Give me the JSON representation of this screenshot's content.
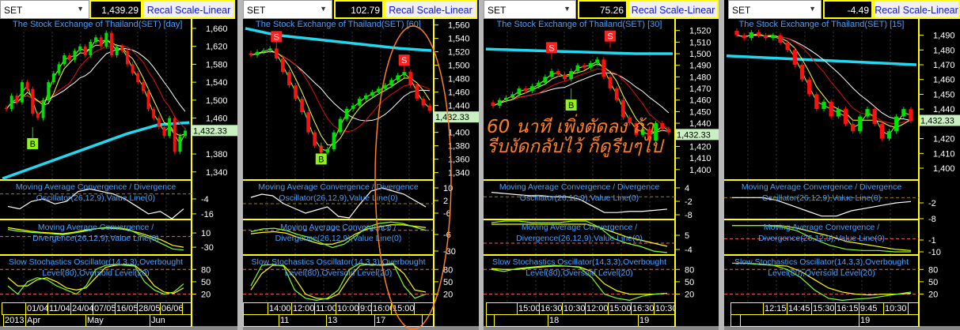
{
  "colors": {
    "up": "#00e000",
    "down": "#ff1010",
    "axis": "#ffff00",
    "title": "#4aa0ff",
    "ma_long": "#22d8f0",
    "last_price_bg": "#c8f0c0",
    "annotation": "#ff7f27"
  },
  "annotation": {
    "text": "60 นาที เพิ่งตัดลง ถ้ารีบงัดกลับไว้ ก็ดูรีบๆไป"
  },
  "indicator_labels": {
    "macd_osc": [
      "Moving Average Convergence / Divergence",
      "Oscillator(26,12,9),Value Line(0)"
    ],
    "macd": [
      "Moving Average Convergence /",
      "Divergence(26,12,9),Value Line(0)"
    ],
    "stoch": [
      "Slow Stochastics Oscillator(14,3,3),Overbought",
      "Level(80),Oversold Level(20)"
    ]
  },
  "panels": [
    {
      "symbol": "SET",
      "value": "1,439.29",
      "button": "Recal Scale-Linear",
      "title": "The Stock Exchange of Thailand(SET) [day]",
      "last_price": "1,432.33",
      "last_price_value": 1432.33,
      "price_ylim": [
        1322,
        1681
      ],
      "price_ticks": [
        1660,
        1620,
        1580,
        1540,
        1500,
        1460,
        1380,
        1340
      ],
      "closes": [
        1480,
        1510,
        1495,
        1540,
        1525,
        1470,
        1460,
        1500,
        1540,
        1560,
        1580,
        1600,
        1590,
        1610,
        1620,
        1600,
        1630,
        1640,
        1620,
        1650,
        1600,
        1620,
        1610,
        1580,
        1560,
        1540,
        1520,
        1480,
        1460,
        1440,
        1420,
        1460,
        1385,
        1420,
        1432
      ],
      "ma_long": [
        1325,
        1350,
        1375,
        1400,
        1425,
        1445,
        1450
      ],
      "signals": [
        {
          "label": "B",
          "index": 5,
          "price": 1440
        }
      ],
      "macd_osc": {
        "ylim": [
          -20.5,
          11.2
        ],
        "ticks": [
          -4,
          -16
        ],
        "zero": 0,
        "line": [
          -10,
          -12,
          -6,
          -4,
          -8,
          -6,
          2,
          4,
          2,
          0,
          -4,
          -10,
          -16,
          -14,
          -20,
          -12
        ]
      },
      "macd": {
        "ylim": [
          -52,
          48
        ],
        "ticks": [
          10,
          -30
        ],
        "zero": 0,
        "signal": [
          25,
          20,
          15,
          12,
          10,
          8,
          12,
          18,
          22,
          24,
          22,
          18,
          10,
          0,
          -10,
          -25,
          -30
        ],
        "macd": [
          20,
          15,
          12,
          10,
          8,
          5,
          10,
          15,
          22,
          26,
          25,
          20,
          5,
          -5,
          -20,
          -35,
          -38
        ]
      },
      "stoch": {
        "ylim": [
          0,
          115
        ],
        "ticks": [
          80,
          50,
          20
        ],
        "levels": [
          80,
          20
        ],
        "k": [
          40,
          20,
          50,
          60,
          55,
          40,
          30,
          20,
          40,
          80,
          90,
          92,
          90,
          88,
          50,
          30,
          20,
          25,
          45
        ],
        "d": [
          60,
          40,
          40,
          55,
          60,
          50,
          35,
          30,
          35,
          60,
          85,
          90,
          92,
          90,
          70,
          40,
          25,
          22,
          35
        ]
      },
      "time_row1": [
        "",
        "01/04",
        "11/04",
        "24/04",
        "07/05",
        "16/05",
        "28/05",
        "06/06",
        ""
      ],
      "time_row2": [
        "2013",
        "Apr",
        "May",
        "Jun"
      ]
    },
    {
      "symbol": "SET",
      "value": "102.79",
      "button": "Recal Scale-Linear",
      "title": "The Stock Exchange of Thailand(SET) [60]",
      "last_price": "1,432.33",
      "last_price_value": 1432.33,
      "price_ylim": [
        1329,
        1569
      ],
      "price_ticks": [
        1560,
        1540,
        1520,
        1500,
        1480,
        1460,
        1440,
        1400,
        1380,
        1360,
        1340
      ],
      "closes": [
        1515,
        1520,
        1522,
        1525,
        1510,
        1490,
        1470,
        1450,
        1430,
        1400,
        1380,
        1370,
        1375,
        1400,
        1420,
        1435,
        1440,
        1450,
        1455,
        1460,
        1465,
        1470,
        1478,
        1485,
        1490,
        1470,
        1450,
        1440,
        1432
      ],
      "ma_long": [
        1555,
        1545,
        1540,
        1535,
        1530,
        1525,
        1522
      ],
      "signals": [
        {
          "label": "S",
          "index": 4,
          "price": 1525
        },
        {
          "label": "B",
          "index": 11,
          "price": 1385
        },
        {
          "label": "S",
          "index": 24,
          "price": 1490
        }
      ],
      "macd_osc": {
        "ylim": [
          -10,
          15
        ],
        "ticks": [
          10,
          2,
          -6
        ],
        "zero": 0,
        "line": [
          4,
          6,
          5,
          0,
          -3,
          -6,
          -4,
          -2,
          -8,
          -9,
          0,
          8,
          10,
          8,
          6,
          2,
          -2
        ]
      },
      "macd": {
        "ylim": [
          -35.7,
          15.7
        ],
        "ticks": [
          -6,
          -30
        ],
        "zero": 0,
        "signal": [
          -5,
          -3,
          -2,
          -4,
          -10,
          -15,
          -20,
          -20,
          -15,
          -5,
          2,
          5,
          8,
          8,
          6,
          4
        ],
        "macd": [
          -2,
          2,
          3,
          0,
          -6,
          -10,
          -18,
          -25,
          -20,
          -8,
          5,
          10,
          12,
          10,
          5,
          0
        ]
      },
      "stoch": {
        "ylim": [
          0,
          115
        ],
        "ticks": [
          80,
          50,
          20
        ],
        "levels": [
          80,
          20
        ],
        "k": [
          40,
          90,
          92,
          88,
          30,
          10,
          5,
          10,
          30,
          80,
          95,
          90,
          92,
          95,
          40,
          10,
          20
        ],
        "d": [
          30,
          70,
          90,
          90,
          60,
          20,
          10,
          8,
          20,
          60,
          90,
          92,
          90,
          92,
          70,
          30,
          25
        ]
      },
      "time_row1": [
        "",
        "14:00",
        "12:00",
        "11:00",
        "10:00",
        "9:00",
        "16:00",
        "15:00",
        ""
      ],
      "time_row2": [
        "",
        "11",
        "13",
        "17",
        ""
      ]
    },
    {
      "symbol": "SET",
      "value": "75.26",
      "button": "Recal Scale-Linear",
      "title": "The Stock Exchange of Thailand(SET) [30]",
      "last_price": "1,432.33",
      "last_price_value": 1432.33,
      "price_ylim": [
        1391,
        1530
      ],
      "price_ticks": [
        1520,
        1510,
        1500,
        1490,
        1480,
        1470,
        1460,
        1450,
        1440,
        1420,
        1410,
        1400
      ],
      "closes": [
        1455,
        1460,
        1462,
        1465,
        1470,
        1468,
        1472,
        1475,
        1480,
        1485,
        1482,
        1478,
        1485,
        1490,
        1488,
        1492,
        1495,
        1480,
        1470,
        1460,
        1445,
        1440,
        1430,
        1435,
        1425,
        1440,
        1435,
        1432
      ],
      "ma_long": [
        1504,
        1503,
        1502,
        1501,
        1500,
        1500
      ],
      "signals": [
        {
          "label": "S",
          "index": 9,
          "price": 1495
        },
        {
          "label": "B",
          "index": 12,
          "price": 1470
        },
        {
          "label": "S",
          "index": 18,
          "price": 1505
        }
      ],
      "macd_osc": {
        "ylim": [
          -10.1,
          7.5
        ],
        "ticks": [
          4,
          -2,
          -8
        ],
        "zero": 0,
        "line": [
          2,
          1.5,
          1,
          0.5,
          0.5,
          0,
          0,
          -1,
          -4,
          -7,
          -7,
          -6.5,
          -6.5,
          -6,
          -5.5
        ]
      },
      "macd": {
        "ylim": [
          -7.5,
          15
        ],
        "ticks": [
          5,
          -4
        ],
        "zero": 0,
        "signal": [
          12,
          12,
          12,
          12,
          12,
          12,
          12,
          12,
          10,
          7,
          4,
          2,
          0,
          -2
        ],
        "macd": [
          13,
          14,
          14,
          13,
          13,
          13,
          14,
          14,
          10,
          3,
          0,
          -2,
          -5,
          -6
        ]
      },
      "stoch": {
        "ylim": [
          0,
          115
        ],
        "ticks": [
          80,
          50,
          20
        ],
        "levels": [
          80,
          20
        ],
        "k": [
          80,
          75,
          82,
          85,
          88,
          90,
          88,
          85,
          60,
          20,
          10,
          5,
          15,
          20,
          22
        ],
        "d": [
          82,
          80,
          80,
          83,
          86,
          88,
          88,
          86,
          75,
          45,
          28,
          20,
          20,
          20,
          22
        ]
      },
      "time_row1": [
        "",
        "15:00",
        "16:30",
        "10:30",
        "12:00",
        "15:00",
        "16:30",
        "10:30"
      ],
      "time_row2": [
        "",
        "",
        "18",
        "19"
      ]
    },
    {
      "symbol": "SET",
      "value": "-4.49",
      "button": "Recal Scale-Linear",
      "title": "The Stock Exchange of Thailand(SET) [15]",
      "last_price": "1,432.33",
      "last_price_value": 1432.33,
      "price_ylim": [
        1392,
        1501
      ],
      "price_ticks": [
        1490,
        1480,
        1470,
        1460,
        1450,
        1440,
        1420,
        1410,
        1400
      ],
      "closes": [
        1490,
        1488,
        1492,
        1490,
        1488,
        1490,
        1485,
        1480,
        1470,
        1460,
        1450,
        1440,
        1445,
        1435,
        1440,
        1430,
        1425,
        1435,
        1440,
        1430,
        1420,
        1425,
        1435,
        1440,
        1432
      ],
      "ma_long": [
        1476,
        1475,
        1474,
        1473,
        1472,
        1471,
        1470
      ],
      "signals": [],
      "macd_osc": {
        "ylim": [
          -8.3,
          6.7
        ],
        "ticks": [
          -2,
          -8
        ],
        "zero": 0,
        "line": [
          0,
          0,
          0,
          -1,
          -3,
          -5,
          -7,
          -7,
          -5,
          -4,
          -3,
          -2,
          -1.5
        ]
      },
      "macd": {
        "ylim": [
          -12.4,
          14.6
        ],
        "ticks": [
          -1,
          -10
        ],
        "zero": 0,
        "signal": [
          10,
          10,
          10,
          10,
          8,
          5,
          2,
          -2,
          -4,
          -6,
          -8,
          -9
        ],
        "macd": [
          10,
          10,
          10,
          9,
          6,
          0,
          -5,
          -8,
          -9,
          -9,
          -10,
          -10
        ]
      },
      "stoch": {
        "ylim": [
          0,
          115
        ],
        "ticks": [
          80,
          50,
          20
        ],
        "levels": [
          80,
          20
        ],
        "k": [
          95,
          95,
          92,
          90,
          80,
          60,
          30,
          10,
          5,
          8,
          10,
          15,
          20,
          25
        ],
        "d": [
          95,
          95,
          93,
          90,
          88,
          75,
          55,
          35,
          25,
          20,
          18,
          20,
          20,
          22
        ]
      },
      "time_row1": [
        "",
        "12:15",
        "14:45",
        "15:30",
        "16:15",
        "9:45",
        "10:30",
        ""
      ],
      "time_row2": [
        "",
        "",
        "19"
      ]
    }
  ]
}
